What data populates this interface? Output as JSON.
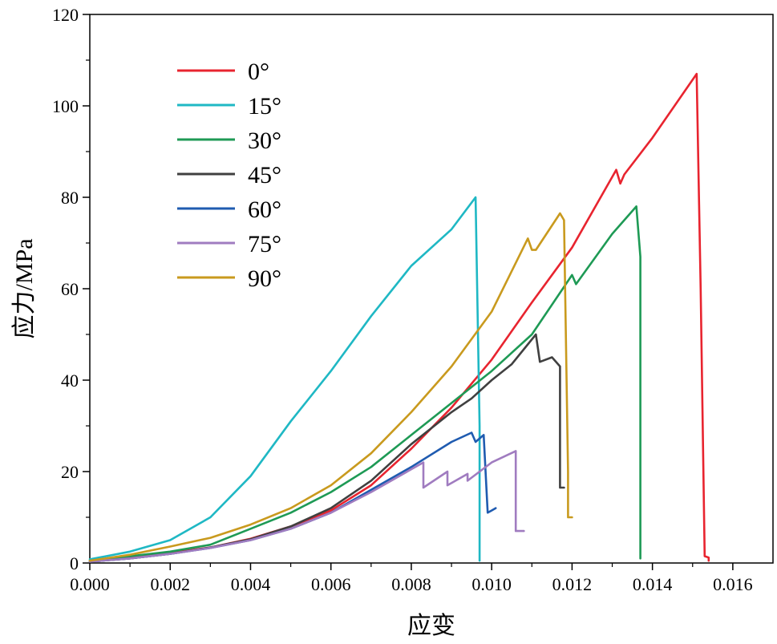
{
  "chart_data": {
    "type": "line",
    "xlabel": "应变",
    "ylabel": "应力/MPa",
    "xlim": [
      0,
      0.017
    ],
    "ylim": [
      0,
      120
    ],
    "xticks": [
      0.0,
      0.002,
      0.004,
      0.006,
      0.008,
      0.01,
      0.012,
      0.014,
      0.016
    ],
    "xtick_labels": [
      "0.000",
      "0.002",
      "0.004",
      "0.006",
      "0.008",
      "0.010",
      "0.012",
      "0.014",
      "0.016"
    ],
    "yticks": [
      0,
      20,
      40,
      60,
      80,
      100,
      120
    ],
    "ytick_labels": [
      "0",
      "20",
      "40",
      "60",
      "80",
      "100",
      "120"
    ],
    "grid": false,
    "legend_position": "top-left",
    "series": [
      {
        "name": "0°",
        "color": "#e8242f",
        "x": [
          0,
          0.001,
          0.002,
          0.003,
          0.004,
          0.005,
          0.006,
          0.007,
          0.008,
          0.009,
          0.01,
          0.011,
          0.012,
          0.0131,
          0.0132,
          0.0133,
          0.014,
          0.0151,
          0.0152,
          0.0153,
          0.0154,
          0.0154
        ],
        "y": [
          0.5,
          1.2,
          2.2,
          3.4,
          5.3,
          8.0,
          11.5,
          17.0,
          25.0,
          34.0,
          44.5,
          57.0,
          69.0,
          86.0,
          83.0,
          85.0,
          93.0,
          107.0,
          60.0,
          1.5,
          1.2,
          0.5
        ]
      },
      {
        "name": "15°",
        "color": "#1fb8c4",
        "x": [
          0,
          0.001,
          0.002,
          0.003,
          0.004,
          0.005,
          0.006,
          0.007,
          0.008,
          0.009,
          0.0096,
          0.0097,
          0.0097
        ],
        "y": [
          0.8,
          2.5,
          5.0,
          10.0,
          19.0,
          31.0,
          42.0,
          54.0,
          65.0,
          73.0,
          80.0,
          30.0,
          0.5
        ]
      },
      {
        "name": "30°",
        "color": "#1e9a55",
        "x": [
          0,
          0.001,
          0.002,
          0.003,
          0.004,
          0.005,
          0.006,
          0.007,
          0.008,
          0.009,
          0.01,
          0.011,
          0.012,
          0.0121,
          0.013,
          0.0136,
          0.0137,
          0.0137,
          0.0137
        ],
        "y": [
          0.5,
          1.5,
          2.5,
          4.0,
          7.5,
          11.0,
          15.5,
          21.0,
          28.0,
          35.0,
          42.0,
          50.0,
          63.0,
          61.0,
          72.0,
          78.0,
          67.0,
          1.5,
          1.0
        ]
      },
      {
        "name": "45°",
        "color": "#404040",
        "x": [
          0,
          0.001,
          0.002,
          0.003,
          0.004,
          0.005,
          0.006,
          0.007,
          0.008,
          0.009,
          0.0095,
          0.01,
          0.0105,
          0.0111,
          0.0112,
          0.0115,
          0.0117,
          0.0117,
          0.0118
        ],
        "y": [
          0.3,
          1.0,
          2.0,
          3.4,
          5.2,
          8.0,
          12.0,
          18.0,
          26.0,
          33.0,
          36.0,
          40.0,
          43.5,
          50.0,
          44.0,
          45.0,
          43.0,
          16.5,
          16.5
        ]
      },
      {
        "name": "60°",
        "color": "#1f5bb0",
        "x": [
          0,
          0.001,
          0.002,
          0.003,
          0.004,
          0.005,
          0.006,
          0.007,
          0.008,
          0.009,
          0.0095,
          0.0096,
          0.0098,
          0.0099,
          0.01,
          0.0101
        ],
        "y": [
          0.3,
          1.0,
          2.0,
          3.3,
          5.0,
          7.5,
          11.0,
          16.0,
          21.0,
          26.5,
          28.5,
          26.5,
          28.0,
          11.0,
          11.5,
          12.0
        ]
      },
      {
        "name": "75°",
        "color": "#a07cc0",
        "x": [
          0,
          0.001,
          0.002,
          0.003,
          0.004,
          0.005,
          0.006,
          0.007,
          0.008,
          0.0083,
          0.0083,
          0.0089,
          0.0089,
          0.0094,
          0.0094,
          0.01,
          0.0106,
          0.0106,
          0.0108
        ],
        "y": [
          0.3,
          1.0,
          2.0,
          3.3,
          5.0,
          7.5,
          11.0,
          15.5,
          20.5,
          22.0,
          16.5,
          20.0,
          17.0,
          19.5,
          18.0,
          22.0,
          24.5,
          7.0,
          7.0
        ]
      },
      {
        "name": "90°",
        "color": "#c99a1e",
        "x": [
          0,
          0.001,
          0.002,
          0.003,
          0.004,
          0.005,
          0.006,
          0.007,
          0.008,
          0.009,
          0.01,
          0.0109,
          0.011,
          0.0111,
          0.0117,
          0.0118,
          0.0119,
          0.0119,
          0.012
        ],
        "y": [
          0.5,
          1.8,
          3.6,
          5.5,
          8.4,
          12.0,
          17.0,
          24.0,
          33.0,
          43.0,
          55.0,
          71.0,
          68.5,
          68.5,
          76.5,
          75.0,
          20.0,
          10.0,
          10.0
        ]
      }
    ]
  }
}
